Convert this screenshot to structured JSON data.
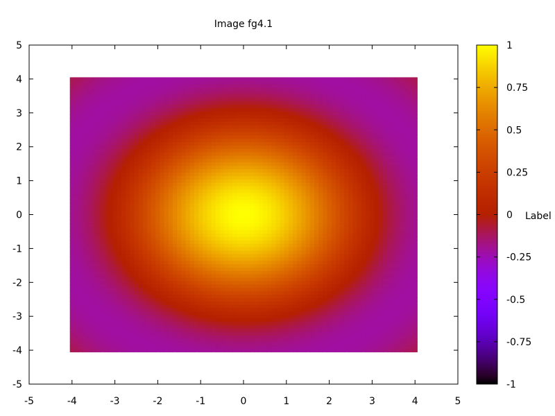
{
  "chart_data": {
    "type": "heatmap",
    "title": "Image fg4.1",
    "xlabel": "",
    "ylabel": "",
    "xlim": [
      -5,
      5
    ],
    "ylim": [
      -5,
      5
    ],
    "x_ticks": [
      "-5",
      "-4",
      "-3",
      "-2",
      "-1",
      "0",
      "1",
      "2",
      "3",
      "4",
      "5"
    ],
    "y_ticks": [
      "-5",
      "-4",
      "-3",
      "-2",
      "-1",
      "0",
      "1",
      "2",
      "3",
      "4",
      "5"
    ],
    "grid": false,
    "image_extent": {
      "x": [
        -4.05,
        4.05
      ],
      "y": [
        -4.05,
        4.05
      ]
    },
    "grid_cells": 81,
    "function": "sin(sqrt(x^2 + y^2)) / sqrt(x^2 + y^2)",
    "colorbar": {
      "label": "Label",
      "range": [
        -1,
        1
      ],
      "ticks": [
        "-1",
        "-0.75",
        "-0.5",
        "-0.25",
        "0",
        "0.25",
        "0.5",
        "0.75",
        "1"
      ],
      "palette": "gnuplot pm3d default (black-blue-red-yellow)"
    }
  }
}
